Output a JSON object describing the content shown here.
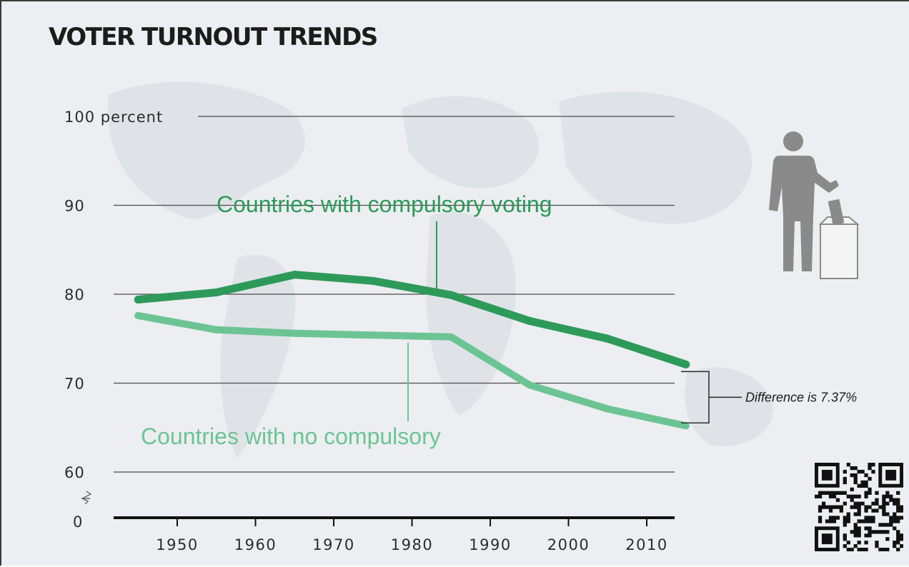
{
  "title": "VOTER TURNOUT TRENDS",
  "chart_data": {
    "type": "line",
    "title": "VOTER TURNOUT TRENDS",
    "xlabel": "",
    "ylabel": "",
    "y_ticks": [
      "100 percent",
      "90",
      "80",
      "70",
      "60",
      "0"
    ],
    "x_ticks": [
      "1950",
      "1960",
      "1970",
      "1980",
      "1990",
      "2000",
      "2010"
    ],
    "ylim": [
      60,
      100
    ],
    "y_axis_break": true,
    "grid": true,
    "x": [
      1945,
      1955,
      1965,
      1975,
      1985,
      1995,
      2005,
      2015
    ],
    "series": [
      {
        "name": "Countries with compulsory voting",
        "color": "#2e9a5a",
        "values": [
          79.4,
          80.2,
          82.2,
          81.5,
          79.9,
          77.0,
          75.0,
          72.1
        ]
      },
      {
        "name": "Countries with no compulsory",
        "color": "#6cc494",
        "values": [
          77.6,
          76.0,
          75.6,
          75.4,
          75.2,
          69.8,
          67.1,
          65.2
        ]
      }
    ],
    "annotations": [
      "Difference is 7.37%"
    ]
  },
  "colors": {
    "compulsory": "#2e9a5a",
    "no_compulsory": "#6cc494",
    "gridline": "#4a4a4a",
    "background": "#eceef1"
  },
  "icons": [
    "voter-ballot-icon",
    "qr-code-icon"
  ]
}
